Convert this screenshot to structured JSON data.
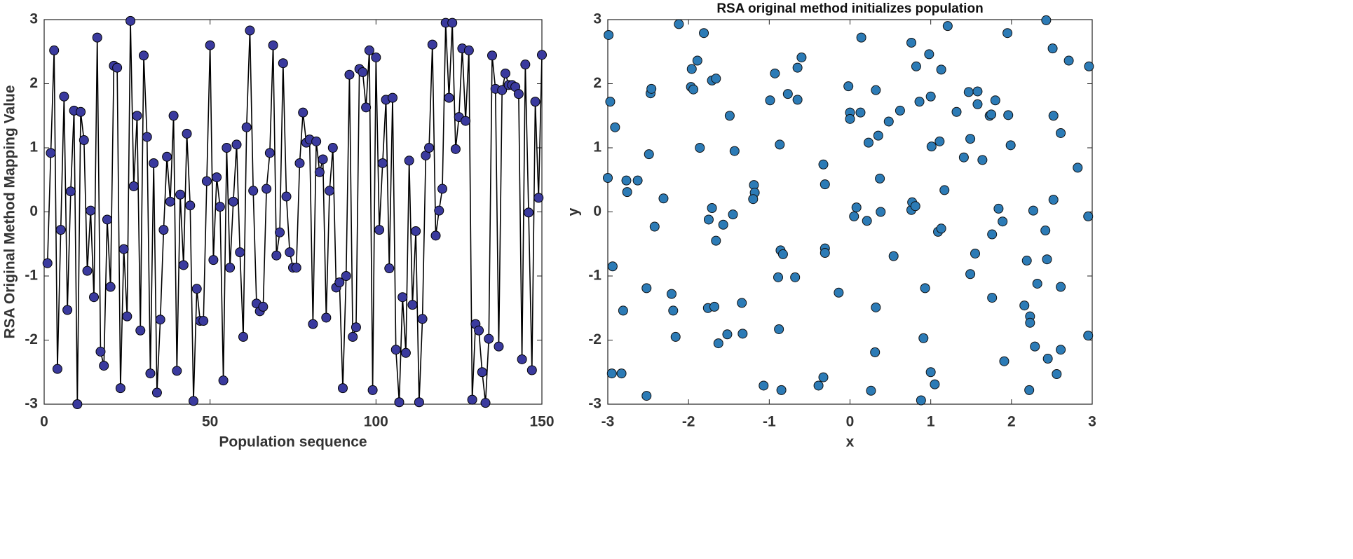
{
  "chart_data": [
    {
      "type": "line",
      "xlabel": "Population sequence",
      "ylabel": "RSA Original Method Mapping Value",
      "x": [
        1,
        2,
        3,
        4,
        5,
        6,
        7,
        8,
        9,
        10,
        11,
        12,
        13,
        14,
        15,
        16,
        17,
        18,
        19,
        20,
        21,
        22,
        23,
        24,
        25,
        26,
        27,
        28,
        29,
        30,
        31,
        32,
        33,
        34,
        35,
        36,
        37,
        38,
        39,
        40,
        41,
        42,
        43,
        44,
        45,
        46,
        47,
        48,
        49,
        50,
        51,
        52,
        53,
        54,
        55,
        56,
        57,
        58,
        59,
        60,
        61,
        62,
        63,
        64,
        65,
        66,
        67,
        68,
        69,
        70,
        71,
        72,
        73,
        74,
        75,
        76,
        77,
        78,
        79,
        80,
        81,
        82,
        83,
        84,
        85,
        86,
        87,
        88,
        89,
        90,
        91,
        92,
        93,
        94,
        95,
        96,
        97,
        98,
        99,
        100,
        101,
        102,
        103,
        104,
        105,
        106,
        107,
        108,
        109,
        110,
        111,
        112,
        113,
        114,
        115,
        116,
        117,
        118,
        119,
        120,
        121,
        122,
        123,
        124,
        125,
        126,
        127,
        128,
        129,
        130,
        131,
        132,
        133,
        134,
        135,
        136,
        137,
        138,
        139,
        140,
        141,
        142,
        143,
        144,
        145,
        146,
        147,
        148,
        149,
        150
      ],
      "values": [
        -0.8,
        0.92,
        2.52,
        -2.45,
        -0.28,
        1.8,
        -1.53,
        0.32,
        1.58,
        -3.0,
        1.56,
        1.12,
        -0.92,
        0.02,
        -1.33,
        2.72,
        -2.18,
        -2.4,
        -0.12,
        -1.17,
        2.28,
        2.25,
        -2.75,
        -0.58,
        -1.63,
        2.98,
        0.4,
        1.5,
        -1.85,
        2.44,
        1.17,
        -2.52,
        0.76,
        -2.82,
        -1.68,
        -0.28,
        0.86,
        0.16,
        1.5,
        -2.48,
        0.27,
        -0.83,
        1.22,
        0.1,
        -2.95,
        -1.2,
        -1.7,
        -1.7,
        0.48,
        2.6,
        -0.75,
        0.54,
        0.08,
        -2.63,
        1.0,
        -0.87,
        0.16,
        1.05,
        -0.63,
        -1.95,
        1.32,
        2.83,
        0.33,
        -1.43,
        -1.55,
        -1.48,
        0.36,
        0.92,
        2.6,
        -0.68,
        -0.32,
        2.32,
        0.24,
        -0.63,
        -0.87,
        -0.87,
        0.76,
        1.55,
        1.08,
        1.13,
        -1.75,
        1.1,
        0.62,
        0.82,
        -1.65,
        0.33,
        1.0,
        -1.18,
        -1.1,
        -2.75,
        -1.0,
        2.14,
        -1.95,
        -1.8,
        2.23,
        2.18,
        1.63,
        2.52,
        -2.78,
        2.41,
        -0.28,
        0.76,
        1.75,
        -0.88,
        1.78,
        -2.15,
        -2.97,
        -1.33,
        -2.2,
        0.8,
        -1.45,
        -0.3,
        -2.97,
        -1.67,
        0.88,
        1.0,
        2.61,
        -0.37,
        0.02,
        0.36,
        2.95,
        1.78,
        2.95,
        0.98,
        1.48,
        2.55,
        1.42,
        2.52,
        -2.93,
        -1.75,
        -1.85,
        -2.5,
        -2.98,
        -1.98,
        2.44,
        1.92,
        -2.1,
        1.9,
        2.16,
        1.98,
        1.98,
        1.95,
        1.84,
        -2.3,
        2.3,
        -0.01,
        -2.47,
        1.72,
        0.22,
        2.45
      ],
      "color": "#3a3a9e",
      "line_color": "#000000",
      "xlim": [
        0,
        150
      ],
      "xticks": [
        0,
        50,
        100,
        150
      ],
      "ylim": [
        -3,
        3
      ],
      "yticks": [
        -3,
        -2,
        -1,
        0,
        1,
        2,
        3
      ]
    },
    {
      "type": "scatter",
      "title": "RSA original method initializes population",
      "xlabel": "x",
      "ylabel": "y",
      "x": [
        -2.99,
        -2.97,
        -2.91,
        -3.0,
        -2.94,
        -2.95,
        -2.83,
        -2.81,
        -2.77,
        -2.76,
        -2.63,
        -2.52,
        -2.52,
        -2.49,
        -2.47,
        -2.46,
        -2.42,
        -2.31,
        -2.21,
        -2.19,
        -2.16,
        -2.12,
        -1.97,
        -1.96,
        -1.94,
        -1.89,
        -1.81,
        -1.86,
        -1.76,
        -1.75,
        -1.71,
        -1.71,
        -1.66,
        -1.68,
        -1.66,
        -1.63,
        -1.57,
        -1.52,
        -1.49,
        -1.45,
        -1.43,
        -1.34,
        -1.33,
        -1.19,
        -1.18,
        -1.2,
        -1.07,
        -0.99,
        -0.93,
        -0.89,
        -0.88,
        -0.87,
        -0.86,
        -0.83,
        -0.85,
        -0.77,
        -0.68,
        -0.65,
        -0.65,
        -0.6,
        -0.39,
        -0.33,
        -0.33,
        -0.31,
        -0.31,
        -0.31,
        -0.14,
        -0.02,
        0.0,
        0.0,
        0.05,
        0.08,
        0.13,
        0.14,
        0.21,
        0.23,
        0.26,
        0.31,
        0.32,
        0.32,
        0.35,
        0.37,
        0.38,
        0.48,
        0.54,
        0.62,
        0.76,
        0.76,
        0.77,
        0.81,
        0.82,
        0.86,
        0.88,
        0.91,
        0.93,
        0.98,
        1.0,
        1.0,
        1.01,
        1.05,
        1.09,
        1.11,
        1.13,
        1.13,
        1.17,
        1.21,
        1.32,
        1.41,
        1.47,
        1.49,
        1.49,
        1.55,
        1.58,
        1.58,
        1.64,
        1.73,
        1.75,
        1.76,
        1.76,
        1.8,
        1.84,
        1.89,
        1.91,
        1.95,
        1.96,
        1.99,
        2.22,
        2.16,
        2.19,
        2.23,
        2.23,
        2.27,
        2.29,
        2.32,
        2.43,
        2.42,
        2.44,
        2.45,
        2.51,
        2.52,
        2.52,
        2.56,
        2.61,
        2.61,
        2.61,
        2.71,
        2.82,
        2.95,
        2.96,
        2.95
      ],
      "y": [
        2.76,
        1.72,
        1.32,
        0.53,
        -0.85,
        -2.52,
        -2.52,
        -1.54,
        0.49,
        0.31,
        0.49,
        -2.87,
        -1.19,
        0.9,
        1.85,
        1.92,
        -0.23,
        0.21,
        -1.28,
        -1.54,
        -1.95,
        2.93,
        1.95,
        2.23,
        1.91,
        2.36,
        2.79,
        1.0,
        -1.5,
        -0.12,
        0.06,
        2.05,
        2.08,
        -1.48,
        -0.45,
        -2.05,
        -0.2,
        -1.91,
        1.5,
        -0.04,
        0.95,
        -1.42,
        -1.9,
        0.42,
        0.3,
        0.2,
        -2.71,
        1.74,
        2.16,
        -1.02,
        -1.83,
        1.05,
        -0.6,
        -0.66,
        -2.78,
        1.84,
        -1.02,
        1.75,
        2.25,
        2.41,
        -2.71,
        -2.58,
        0.74,
        0.43,
        -0.57,
        -0.64,
        -1.26,
        1.96,
        1.55,
        1.45,
        -0.07,
        0.07,
        1.55,
        2.72,
        -0.14,
        1.08,
        -2.79,
        -2.19,
        1.9,
        -1.49,
        1.19,
        0.52,
        0.0,
        1.41,
        -0.69,
        1.58,
        2.64,
        0.03,
        0.15,
        0.09,
        2.27,
        1.72,
        -2.94,
        -1.97,
        -1.19,
        2.46,
        1.8,
        -2.5,
        1.02,
        -2.69,
        -0.31,
        1.1,
        2.22,
        -0.26,
        0.34,
        2.9,
        1.56,
        0.85,
        1.87,
        1.14,
        -0.97,
        -0.65,
        1.68,
        1.88,
        0.81,
        1.5,
        1.52,
        -0.35,
        -1.34,
        1.74,
        0.05,
        -0.15,
        -2.33,
        2.79,
        1.51,
        1.04,
        -2.78,
        -1.46,
        -0.76,
        -1.63,
        -1.73,
        0.02,
        -2.1,
        -1.12,
        2.99,
        -0.29,
        -0.74,
        -2.29,
        2.55,
        1.5,
        0.19,
        -2.53,
        1.23,
        -1.17,
        -2.15,
        2.36,
        0.69,
        -0.07,
        2.27,
        -1.93
      ],
      "color": "#2c7bb6",
      "xlim": [
        -3,
        3
      ],
      "xticks": [
        -3,
        -2,
        -1,
        0,
        1,
        2,
        3
      ],
      "ylim": [
        -3,
        3
      ],
      "yticks": [
        -3,
        -2,
        -1,
        0,
        1,
        2,
        3
      ]
    }
  ]
}
